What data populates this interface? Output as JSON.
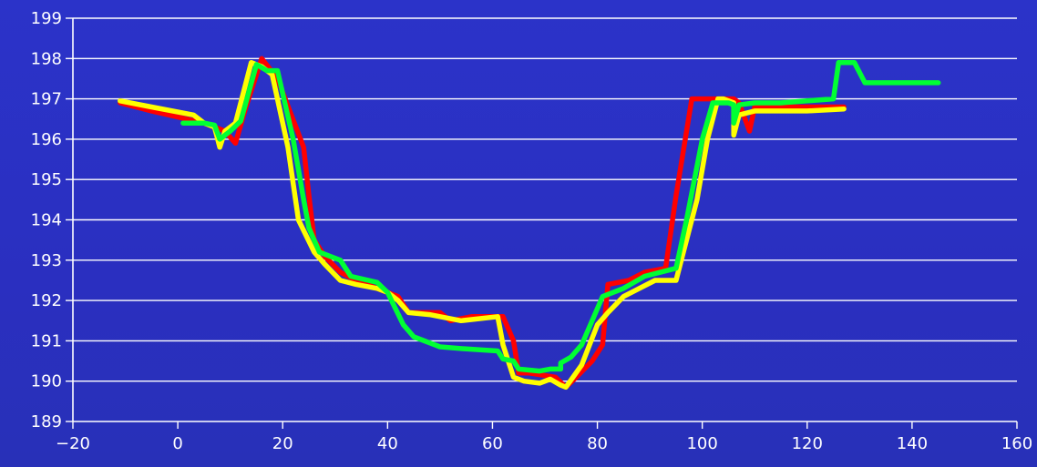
{
  "chart_data": {
    "type": "line",
    "title": "",
    "xlabel": "",
    "ylabel": "",
    "xlim": [
      -20,
      160
    ],
    "ylim": [
      189,
      199
    ],
    "x_ticks": [
      -20,
      0,
      20,
      40,
      60,
      80,
      100,
      120,
      140,
      160
    ],
    "y_ticks": [
      189,
      190,
      191,
      192,
      193,
      194,
      195,
      196,
      197,
      198,
      199
    ],
    "grid": "horizontal",
    "legend": "none",
    "background_color": "#2b33c9",
    "series": [
      {
        "color": "#ff0000",
        "points": [
          [
            -11,
            196.9
          ],
          [
            -5,
            196.7
          ],
          [
            5,
            196.4
          ],
          [
            9,
            196.2
          ],
          [
            11,
            195.9
          ],
          [
            13,
            196.8
          ],
          [
            16,
            198.0
          ],
          [
            19,
            197.5
          ],
          [
            24,
            195.8
          ],
          [
            25,
            194.6
          ],
          [
            26,
            193.5
          ],
          [
            28,
            193.1
          ],
          [
            31,
            192.7
          ],
          [
            34,
            192.5
          ],
          [
            38,
            192.3
          ],
          [
            42,
            192.1
          ],
          [
            44,
            191.7
          ],
          [
            50,
            191.7
          ],
          [
            52,
            191.5
          ],
          [
            56,
            191.6
          ],
          [
            61,
            191.6
          ],
          [
            62,
            191.6
          ],
          [
            64,
            191.0
          ],
          [
            65,
            190.2
          ],
          [
            67,
            190.2
          ],
          [
            72,
            190.1
          ],
          [
            74,
            189.85
          ],
          [
            76,
            190.1
          ],
          [
            79,
            190.5
          ],
          [
            81,
            190.9
          ],
          [
            82,
            192.4
          ],
          [
            86,
            192.5
          ],
          [
            89,
            192.7
          ],
          [
            93,
            192.8
          ],
          [
            95,
            194.6
          ],
          [
            98,
            197.0
          ],
          [
            104,
            197.0
          ],
          [
            106,
            197.0
          ],
          [
            107,
            196.9
          ],
          [
            109,
            196.2
          ],
          [
            110,
            196.8
          ],
          [
            115,
            196.8
          ],
          [
            121,
            196.8
          ],
          [
            125,
            196.8
          ],
          [
            127,
            196.8
          ]
        ]
      },
      {
        "color": "#ffff00",
        "points": [
          [
            -11,
            196.95
          ],
          [
            -5,
            196.8
          ],
          [
            3,
            196.6
          ],
          [
            5,
            196.4
          ],
          [
            7,
            196.3
          ],
          [
            8,
            195.8
          ],
          [
            9,
            196.2
          ],
          [
            11,
            196.4
          ],
          [
            14,
            197.9
          ],
          [
            16,
            197.8
          ],
          [
            18,
            197.6
          ],
          [
            21,
            195.8
          ],
          [
            23,
            194.0
          ],
          [
            26,
            193.2
          ],
          [
            28,
            192.9
          ],
          [
            31,
            192.5
          ],
          [
            34,
            192.4
          ],
          [
            38,
            192.3
          ],
          [
            40,
            192.2
          ],
          [
            42,
            192.0
          ],
          [
            44,
            191.7
          ],
          [
            48,
            191.65
          ],
          [
            54,
            191.5
          ],
          [
            61,
            191.6
          ],
          [
            62,
            190.9
          ],
          [
            64,
            190.1
          ],
          [
            66,
            190.0
          ],
          [
            69,
            189.95
          ],
          [
            71,
            190.05
          ],
          [
            73,
            189.9
          ],
          [
            74,
            189.85
          ],
          [
            77,
            190.4
          ],
          [
            80,
            191.4
          ],
          [
            82,
            191.7
          ],
          [
            85,
            192.1
          ],
          [
            88,
            192.3
          ],
          [
            91,
            192.5
          ],
          [
            95,
            192.5
          ],
          [
            99,
            194.5
          ],
          [
            101,
            196.0
          ],
          [
            103,
            197.0
          ],
          [
            104,
            197.0
          ],
          [
            106,
            196.9
          ],
          [
            106,
            196.1
          ],
          [
            107,
            196.6
          ],
          [
            110,
            196.7
          ],
          [
            115,
            196.7
          ],
          [
            120,
            196.7
          ],
          [
            127,
            196.75
          ]
        ]
      },
      {
        "color": "#00ff33",
        "points": [
          [
            1,
            196.4
          ],
          [
            5,
            196.4
          ],
          [
            7,
            196.35
          ],
          [
            8,
            196.0
          ],
          [
            10,
            196.2
          ],
          [
            12,
            196.45
          ],
          [
            15,
            197.85
          ],
          [
            17,
            197.7
          ],
          [
            19,
            197.7
          ],
          [
            22,
            196.0
          ],
          [
            24,
            194.5
          ],
          [
            25,
            193.8
          ],
          [
            27,
            193.2
          ],
          [
            29,
            193.1
          ],
          [
            31,
            193.0
          ],
          [
            33,
            192.6
          ],
          [
            38,
            192.45
          ],
          [
            40,
            192.2
          ],
          [
            43,
            191.4
          ],
          [
            45,
            191.1
          ],
          [
            50,
            190.85
          ],
          [
            55,
            190.8
          ],
          [
            61,
            190.75
          ],
          [
            62,
            190.55
          ],
          [
            64,
            190.5
          ],
          [
            65,
            190.3
          ],
          [
            69,
            190.25
          ],
          [
            71,
            190.3
          ],
          [
            73,
            190.3
          ],
          [
            73,
            190.45
          ],
          [
            75,
            190.6
          ],
          [
            77,
            190.9
          ],
          [
            79,
            191.5
          ],
          [
            81,
            192.1
          ],
          [
            85,
            192.3
          ],
          [
            89,
            192.6
          ],
          [
            95,
            192.8
          ],
          [
            97,
            194.0
          ],
          [
            100,
            196.0
          ],
          [
            102,
            196.9
          ],
          [
            105,
            196.9
          ],
          [
            106,
            196.85
          ],
          [
            106,
            196.4
          ],
          [
            107,
            196.85
          ],
          [
            110,
            196.9
          ],
          [
            115,
            196.9
          ],
          [
            120,
            196.95
          ],
          [
            125,
            197.0
          ],
          [
            126,
            197.9
          ],
          [
            129,
            197.9
          ],
          [
            131,
            197.4
          ],
          [
            134,
            197.4
          ],
          [
            140,
            197.4
          ],
          [
            145,
            197.4
          ]
        ]
      }
    ]
  }
}
